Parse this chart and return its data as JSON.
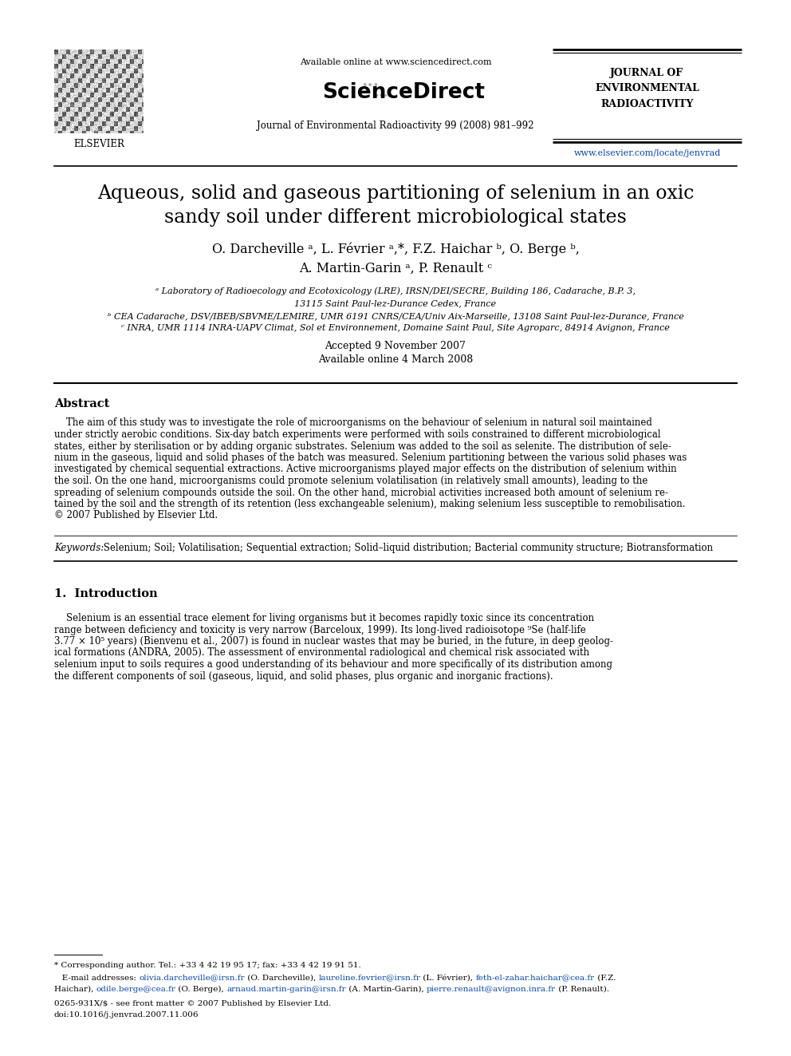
{
  "bg_color": "#ffffff",
  "title_line1": "Aqueous, solid and gaseous partitioning of selenium in an oxic",
  "title_line2": "sandy soil under different microbiological states",
  "authors_line1": "O. Darcheville ᵃ, L. Février ᵃ,*, F.Z. Haichar ᵇ, O. Berge ᵇ,",
  "authors_line2": "A. Martin-Garin ᵃ, P. Renault ᶜ",
  "affil_a": "ᵃ Laboratory of Radioecology and Ecotoxicology (LRE), IRSN/DEI/SECRE, Building 186, Cadarache, B.P. 3,",
  "affil_a2": "13115 Saint Paul-lez-Durance Cedex, France",
  "affil_b": "ᵇ CEA Cadarache, DSV/IBEB/SBVME/LEMIRE, UMR 6191 CNRS/CEA/Univ Aix-Marseille, 13108 Saint Paul-lez-Durance, France",
  "affil_c": "ᶜ INRA, UMR 1114 INRA-UAPV Climat, Sol et Environnement, Domaine Saint Paul, Site Agroparc, 84914 Avignon, France",
  "accepted": "Accepted 9 November 2007",
  "available": "Available online 4 March 2008",
  "header_available": "Available online at www.sciencedirect.com",
  "journal_line1": "Journal of Environmental Radioactivity 99 (2008) 981–992",
  "journal_name_line1": "JOURNAL OF",
  "journal_name_line2": "ENVIRONMENTAL",
  "journal_name_line3": "RADIOACTIVITY",
  "journal_url": "www.elsevier.com/locate/jenvrad",
  "abstract_title": "Abstract",
  "abstract_text_lines": [
    "    The aim of this study was to investigate the role of microorganisms on the behaviour of selenium in natural soil maintained",
    "under strictly aerobic conditions. Six-day batch experiments were performed with soils constrained to different microbiological",
    "states, either by sterilisation or by adding organic substrates. Selenium was added to the soil as selenite. The distribution of sele-",
    "nium in the gaseous, liquid and solid phases of the batch was measured. Selenium partitioning between the various solid phases was",
    "investigated by chemical sequential extractions. Active microorganisms played major effects on the distribution of selenium within",
    "the soil. On the one hand, microorganisms could promote selenium volatilisation (in relatively small amounts), leading to the",
    "spreading of selenium compounds outside the soil. On the other hand, microbial activities increased both amount of selenium re-",
    "tained by the soil and the strength of its retention (less exchangeable selenium), making selenium less susceptible to remobilisation.",
    "© 2007 Published by Elsevier Ltd."
  ],
  "keywords_label": "Keywords:",
  "keywords_text": " Selenium; Soil; Volatilisation; Sequential extraction; Solid–liquid distribution; Bacterial community structure; Biotransformation",
  "section_intro": "1.  Introduction",
  "intro_text_lines": [
    "    Selenium is an essential trace element for living organisms but it becomes rapidly toxic since its concentration",
    "range between deficiency and toxicity is very narrow (Barceloux, 1999). Its long-lived radioisotope ⁹Se (half-life",
    "3.77 × 10⁵ years) (Bienvenu et al., 2007) is found in nuclear wastes that may be buried, in the future, in deep geolog-",
    "ical formations (ANDRA, 2005). The assessment of environmental radiological and chemical risk associated with",
    "selenium input to soils requires a good understanding of its behaviour and more specifically of its distribution among",
    "the different components of soil (gaseous, liquid, and solid phases, plus organic and inorganic fractions)."
  ],
  "footnote_star": "* Corresponding author. Tel.: +33 4 42 19 95 17; fax: +33 4 42 19 91 51.",
  "footnote_email_label": "   E-mail addresses:",
  "fn_email1": "olivia.darcheville@irsn.fr",
  "fn_text1": " (O. Darcheville),",
  "fn_email2": "laureline.fevrier@irsn.fr",
  "fn_text2": " (L. Février),",
  "fn_email3": "feth-el-zahar.haichar@cea.fr",
  "fn_text3": " (F.Z.",
  "fn_haichar_start": "Haichar),",
  "fn_email4": "odile.berge@cea.fr",
  "fn_text4": " (O. Berge),",
  "fn_email5": "arnaud.martin-garin@irsn.fr",
  "fn_text5": " (A. Martin-Garin),",
  "fn_email6": "pierre.renault@avignon.inra.fr",
  "fn_text6": " (P. Renault).",
  "copyright_line1": "0265-931X/$ - see front matter © 2007 Published by Elsevier Ltd.",
  "copyright_line2": "doi:10.1016/j.jenvrad.2007.11.006",
  "link_color": "#0645ad",
  "sciencedirect_color": "#000000",
  "fig_width": 9.92,
  "fig_height": 13.23,
  "dpi": 100
}
